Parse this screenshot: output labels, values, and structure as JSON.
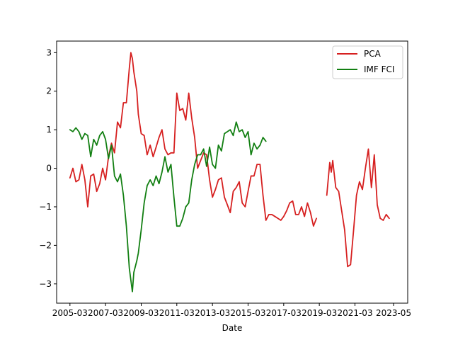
{
  "chart_data": {
    "type": "line",
    "title": "",
    "xlabel": "Date",
    "ylabel": "",
    "xlim": [
      "2004-06-01",
      "2024-02-15"
    ],
    "ylim": [
      -3.5,
      3.3
    ],
    "grid": false,
    "legend_position": "top-right",
    "x_ticks": [
      {
        "date": "2005-03-01",
        "label": "2005-03"
      },
      {
        "date": "2007-03-01",
        "label": "2007-03"
      },
      {
        "date": "2009-03-01",
        "label": "2009-03"
      },
      {
        "date": "2011-03-01",
        "label": "2011-03"
      },
      {
        "date": "2013-03-01",
        "label": "2013-03"
      },
      {
        "date": "2015-03-01",
        "label": "2015-03"
      },
      {
        "date": "2017-03-01",
        "label": "2017-03"
      },
      {
        "date": "2019-03-01",
        "label": "2019-03"
      },
      {
        "date": "2021-03-01",
        "label": "2021-03"
      },
      {
        "date": "2023-05-01",
        "label": "2023-05"
      }
    ],
    "y_ticks": [
      -3,
      -2,
      -1,
      0,
      1,
      2,
      3
    ],
    "series": [
      {
        "name": "PCA",
        "color": "#d62020",
        "points": [
          [
            "2005-03-01",
            -0.25
          ],
          [
            "2005-05-01",
            0.0
          ],
          [
            "2005-07-01",
            -0.35
          ],
          [
            "2005-09-01",
            -0.3
          ],
          [
            "2005-11-01",
            0.1
          ],
          [
            "2006-01-01",
            -0.3
          ],
          [
            "2006-03-01",
            -1.0
          ],
          [
            "2006-05-01",
            -0.2
          ],
          [
            "2006-07-01",
            -0.15
          ],
          [
            "2006-09-01",
            -0.6
          ],
          [
            "2006-11-01",
            -0.4
          ],
          [
            "2007-01-01",
            0.0
          ],
          [
            "2007-03-01",
            -0.3
          ],
          [
            "2007-05-01",
            0.3
          ],
          [
            "2007-07-01",
            0.65
          ],
          [
            "2007-09-01",
            0.4
          ],
          [
            "2007-11-01",
            1.2
          ],
          [
            "2008-01-01",
            1.05
          ],
          [
            "2008-03-01",
            1.7
          ],
          [
            "2008-05-01",
            1.7
          ],
          [
            "2008-07-01",
            2.6
          ],
          [
            "2008-08-01",
            3.0
          ],
          [
            "2008-09-01",
            2.85
          ],
          [
            "2008-10-01",
            2.5
          ],
          [
            "2008-12-01",
            2.0
          ],
          [
            "2009-01-01",
            1.4
          ],
          [
            "2009-03-01",
            0.9
          ],
          [
            "2009-05-01",
            0.85
          ],
          [
            "2009-07-01",
            0.35
          ],
          [
            "2009-09-01",
            0.6
          ],
          [
            "2009-11-01",
            0.3
          ],
          [
            "2010-01-01",
            0.55
          ],
          [
            "2010-03-01",
            0.8
          ],
          [
            "2010-05-01",
            1.0
          ],
          [
            "2010-07-01",
            0.5
          ],
          [
            "2010-09-01",
            0.35
          ],
          [
            "2010-11-01",
            0.4
          ],
          [
            "2011-01-01",
            0.4
          ],
          [
            "2011-03-01",
            1.95
          ],
          [
            "2011-05-01",
            1.5
          ],
          [
            "2011-07-01",
            1.55
          ],
          [
            "2011-09-01",
            1.25
          ],
          [
            "2011-11-01",
            1.95
          ],
          [
            "2012-01-01",
            1.3
          ],
          [
            "2012-03-01",
            0.8
          ],
          [
            "2012-05-01",
            0.0
          ],
          [
            "2012-07-01",
            0.2
          ],
          [
            "2012-09-01",
            0.4
          ],
          [
            "2012-11-01",
            0.35
          ],
          [
            "2013-01-01",
            -0.3
          ],
          [
            "2013-03-01",
            -0.75
          ],
          [
            "2013-05-01",
            -0.55
          ],
          [
            "2013-07-01",
            -0.3
          ],
          [
            "2013-09-01",
            -0.25
          ],
          [
            "2013-11-01",
            -0.75
          ],
          [
            "2014-01-01",
            -0.95
          ],
          [
            "2014-03-01",
            -1.15
          ],
          [
            "2014-05-01",
            -0.6
          ],
          [
            "2014-07-01",
            -0.5
          ],
          [
            "2014-09-01",
            -0.35
          ],
          [
            "2014-11-01",
            -0.9
          ],
          [
            "2015-01-01",
            -1.0
          ],
          [
            "2015-03-01",
            -0.6
          ],
          [
            "2015-05-01",
            -0.2
          ],
          [
            "2015-07-01",
            -0.2
          ],
          [
            "2015-09-01",
            0.1
          ],
          [
            "2015-11-01",
            0.1
          ],
          [
            "2016-01-01",
            -0.7
          ],
          [
            "2016-03-01",
            -1.35
          ],
          [
            "2016-05-01",
            -1.2
          ],
          [
            "2016-07-01",
            -1.2
          ],
          [
            "2016-09-01",
            -1.25
          ],
          [
            "2016-11-01",
            -1.3
          ],
          [
            "2017-01-01",
            -1.35
          ],
          [
            "2017-03-01",
            -1.25
          ],
          [
            "2017-05-01",
            -1.1
          ],
          [
            "2017-07-01",
            -0.9
          ],
          [
            "2017-09-01",
            -0.85
          ],
          [
            "2017-11-01",
            -1.2
          ],
          [
            "2018-01-01",
            -1.2
          ],
          [
            "2018-03-01",
            -1.0
          ],
          [
            "2018-05-01",
            -1.25
          ],
          [
            "2018-07-01",
            -0.9
          ],
          [
            "2018-09-01",
            -1.15
          ],
          [
            "2018-11-01",
            -1.5
          ],
          [
            "2019-01-01",
            -1.3
          ]
        ]
      },
      {
        "name": "PCA",
        "color": "#d62020",
        "points": [
          [
            "2019-08-01",
            -0.7
          ],
          [
            "2019-10-01",
            0.15
          ],
          [
            "2019-11-01",
            -0.1
          ],
          [
            "2019-12-01",
            0.2
          ],
          [
            "2020-02-01",
            -0.5
          ],
          [
            "2020-04-01",
            -0.6
          ],
          [
            "2020-06-01",
            -1.1
          ],
          [
            "2020-08-01",
            -1.6
          ],
          [
            "2020-10-01",
            -2.55
          ],
          [
            "2020-12-01",
            -2.5
          ],
          [
            "2021-02-01",
            -1.6
          ],
          [
            "2021-04-01",
            -0.7
          ],
          [
            "2021-06-01",
            -0.35
          ],
          [
            "2021-08-01",
            -0.55
          ],
          [
            "2021-10-01",
            0.0
          ],
          [
            "2021-12-01",
            0.5
          ],
          [
            "2022-02-01",
            -0.5
          ],
          [
            "2022-04-01",
            0.35
          ],
          [
            "2022-06-01",
            -0.95
          ],
          [
            "2022-08-01",
            -1.3
          ],
          [
            "2022-10-01",
            -1.35
          ],
          [
            "2022-12-01",
            -1.2
          ],
          [
            "2023-02-01",
            -1.3
          ]
        ]
      },
      {
        "name": "IMF FCI",
        "color": "#127f12",
        "points": [
          [
            "2005-03-01",
            1.0
          ],
          [
            "2005-05-01",
            0.95
          ],
          [
            "2005-07-01",
            1.05
          ],
          [
            "2005-09-01",
            0.95
          ],
          [
            "2005-11-01",
            0.75
          ],
          [
            "2006-01-01",
            0.9
          ],
          [
            "2006-03-01",
            0.85
          ],
          [
            "2006-05-01",
            0.3
          ],
          [
            "2006-07-01",
            0.75
          ],
          [
            "2006-09-01",
            0.6
          ],
          [
            "2006-11-01",
            0.85
          ],
          [
            "2007-01-01",
            0.95
          ],
          [
            "2007-03-01",
            0.75
          ],
          [
            "2007-05-01",
            0.25
          ],
          [
            "2007-07-01",
            0.6
          ],
          [
            "2007-09-01",
            -0.2
          ],
          [
            "2007-11-01",
            -0.35
          ],
          [
            "2008-01-01",
            -0.15
          ],
          [
            "2008-03-01",
            -0.7
          ],
          [
            "2008-05-01",
            -1.5
          ],
          [
            "2008-07-01",
            -2.6
          ],
          [
            "2008-09-01",
            -3.2
          ],
          [
            "2008-10-01",
            -2.7
          ],
          [
            "2008-12-01",
            -2.4
          ],
          [
            "2009-01-01",
            -2.2
          ],
          [
            "2009-03-01",
            -1.6
          ],
          [
            "2009-05-01",
            -0.9
          ],
          [
            "2009-07-01",
            -0.45
          ],
          [
            "2009-09-01",
            -0.3
          ],
          [
            "2009-11-01",
            -0.45
          ],
          [
            "2010-01-01",
            -0.2
          ],
          [
            "2010-03-01",
            -0.4
          ],
          [
            "2010-05-01",
            -0.1
          ],
          [
            "2010-07-01",
            0.3
          ],
          [
            "2010-09-01",
            -0.1
          ],
          [
            "2010-11-01",
            0.1
          ],
          [
            "2011-01-01",
            -0.75
          ],
          [
            "2011-03-01",
            -1.5
          ],
          [
            "2011-05-01",
            -1.5
          ],
          [
            "2011-07-01",
            -1.3
          ],
          [
            "2011-09-01",
            -1.0
          ],
          [
            "2011-11-01",
            -0.9
          ],
          [
            "2012-01-01",
            -0.3
          ],
          [
            "2012-03-01",
            0.1
          ],
          [
            "2012-05-01",
            0.35
          ],
          [
            "2012-07-01",
            0.35
          ],
          [
            "2012-09-01",
            0.5
          ],
          [
            "2012-11-01",
            0.05
          ],
          [
            "2013-01-01",
            0.55
          ],
          [
            "2013-03-01",
            0.1
          ],
          [
            "2013-05-01",
            0.0
          ],
          [
            "2013-07-01",
            0.6
          ],
          [
            "2013-09-01",
            0.45
          ],
          [
            "2013-11-01",
            0.9
          ],
          [
            "2014-01-01",
            0.95
          ],
          [
            "2014-03-01",
            1.0
          ],
          [
            "2014-05-01",
            0.85
          ],
          [
            "2014-07-01",
            1.2
          ],
          [
            "2014-09-01",
            0.95
          ],
          [
            "2014-11-01",
            1.0
          ],
          [
            "2015-01-01",
            0.8
          ],
          [
            "2015-03-01",
            0.95
          ],
          [
            "2015-05-01",
            0.35
          ],
          [
            "2015-07-01",
            0.65
          ],
          [
            "2015-09-01",
            0.5
          ],
          [
            "2015-11-01",
            0.6
          ],
          [
            "2016-01-01",
            0.8
          ],
          [
            "2016-03-01",
            0.7
          ]
        ]
      }
    ]
  }
}
